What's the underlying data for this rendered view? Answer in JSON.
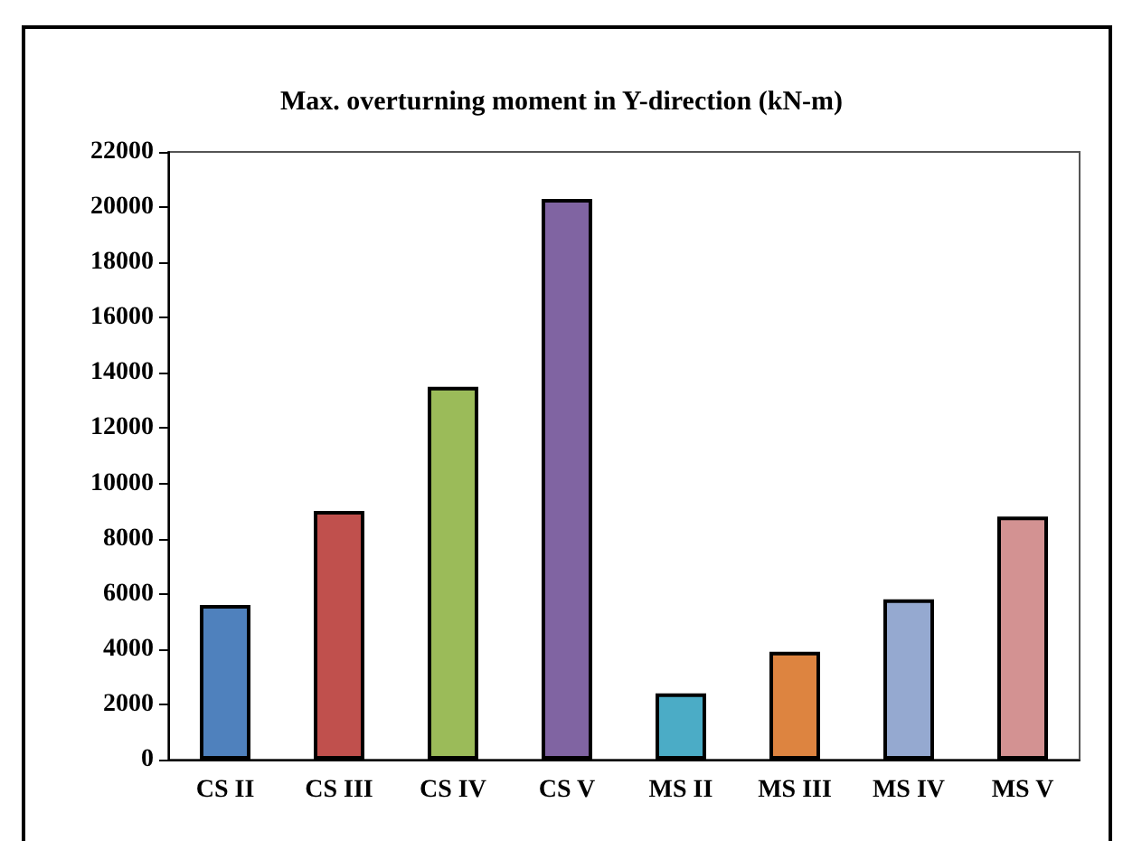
{
  "chart_data": {
    "type": "bar",
    "title": "Max. overturning moment in Y-direction (kN-m)",
    "categories": [
      "CS II",
      "CS III",
      "CS IV",
      "CS V",
      "MS II",
      "MS III",
      "MS IV",
      "MS V"
    ],
    "values": [
      5600,
      9000,
      13500,
      20300,
      2400,
      3900,
      5800,
      8800
    ],
    "colors": [
      "#4f81bd",
      "#c0504d",
      "#9bbb59",
      "#8064a2",
      "#4bacc6",
      "#dd8440",
      "#95a9d0",
      "#d39292"
    ],
    "ylim": [
      0,
      22000
    ],
    "yticks": [
      0,
      2000,
      4000,
      6000,
      8000,
      10000,
      12000,
      14000,
      16000,
      18000,
      20000,
      22000
    ],
    "grid": false
  }
}
